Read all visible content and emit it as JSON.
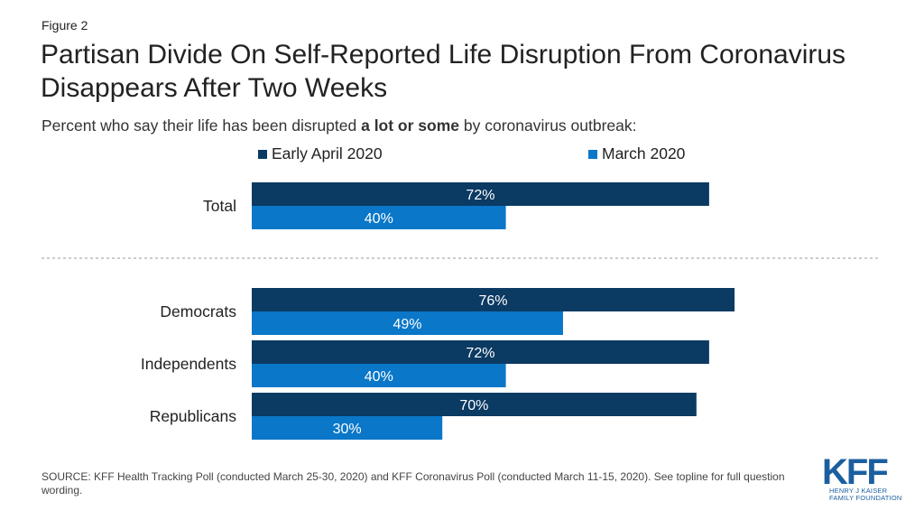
{
  "figure_label": "Figure 2",
  "title": "Partisan Divide On Self-Reported Life Disruption From Coronavirus Disappears After Two Weeks",
  "subtitle_parts": {
    "before": "Percent who say their life has been disrupted ",
    "bold": "a lot or some",
    "after": " by coronavirus outbreak:"
  },
  "source": "SOURCE: KFF Health Tracking Poll (conducted March 25-30, 2020) and KFF Coronavirus Poll (conducted March 11-15, 2020). See topline for full question wording.",
  "logo": {
    "main": "KFF",
    "sub_line1": "HENRY J KAISER",
    "sub_line2": "FAMILY FOUNDATION"
  },
  "colors": {
    "early_april": "#0b3a63",
    "march": "#0a77c8",
    "divider": "#999999"
  },
  "chart_data": {
    "type": "bar",
    "orientation": "horizontal",
    "categories": [
      "Total",
      "Democrats",
      "Independents",
      "Republicans"
    ],
    "series": [
      {
        "name": "Early April 2020",
        "values": [
          72,
          76,
          72,
          70
        ],
        "labels": [
          "72%",
          "76%",
          "72%",
          "70%"
        ]
      },
      {
        "name": "March 2020",
        "values": [
          40,
          49,
          40,
          30
        ],
        "labels": [
          "40%",
          "49%",
          "40%",
          "30%"
        ]
      }
    ],
    "xlim": [
      0,
      100
    ],
    "grid": false,
    "legend_placement": "top"
  }
}
